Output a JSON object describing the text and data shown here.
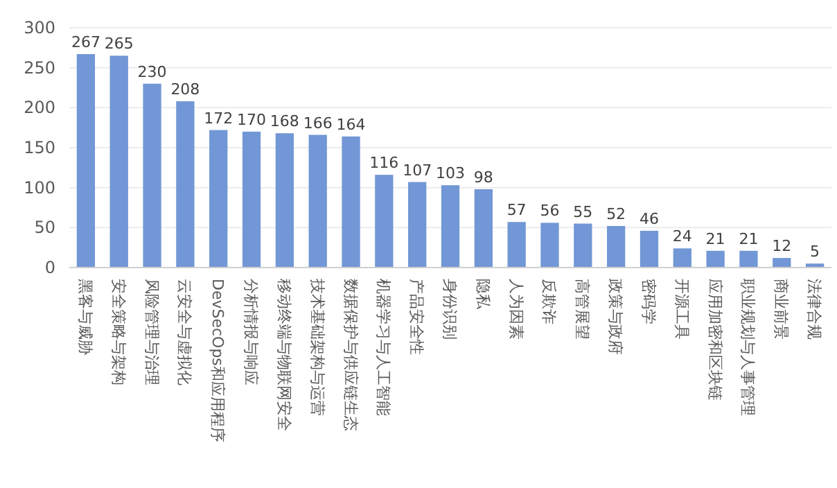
{
  "chart_data": {
    "type": "bar",
    "categories": [
      "黑客与威胁",
      "安全策略与架构",
      "风险管理与治理",
      "云安全与虚拟化",
      "DevSecOps和应用程序",
      "分析情报与响应",
      "移动终端与物联网安全",
      "技术基础架构与运营",
      "数据保护与供应链生态",
      "机器学习与人工智能",
      "产品安全性",
      "身份识别",
      "隐私",
      "人为因素",
      "反欺诈",
      "高管展望",
      "政策与政府",
      "密码学",
      "开源工具",
      "应用加密和区块链",
      "职业规划与人事管理",
      "商业前景",
      "法律合规"
    ],
    "values": [
      267,
      265,
      230,
      208,
      172,
      170,
      168,
      166,
      164,
      116,
      107,
      103,
      98,
      57,
      56,
      55,
      52,
      46,
      24,
      21,
      21,
      12,
      5
    ],
    "color": "#7297d6",
    "ylim": [
      0,
      300
    ],
    "yticks": [
      0,
      50,
      100,
      150,
      200,
      250,
      300
    ],
    "grid": "y",
    "data_labels": true
  }
}
